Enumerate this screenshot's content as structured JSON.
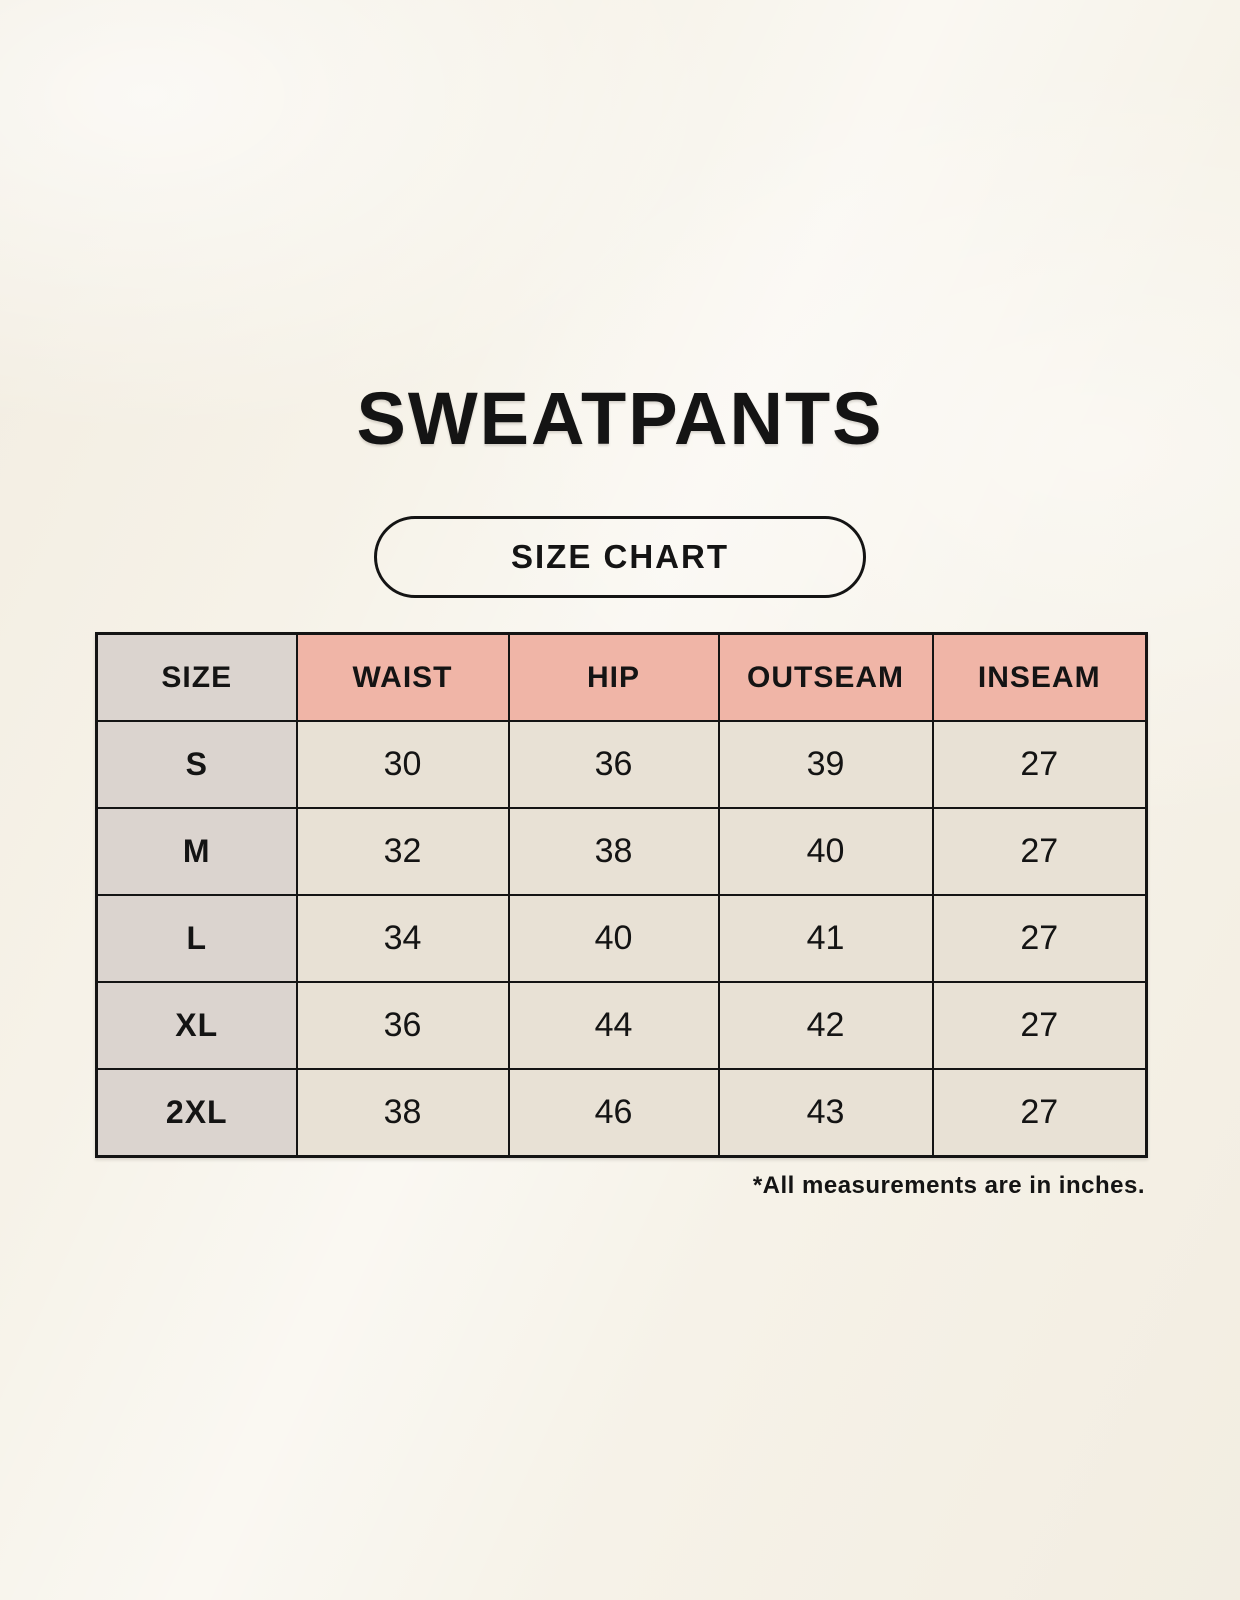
{
  "header": {
    "title": "SWEATPANTS",
    "badge_label": "SIZE CHART"
  },
  "chart_data": {
    "type": "table",
    "columns": [
      "SIZE",
      "WAIST",
      "HIP",
      "OUTSEAM",
      "INSEAM"
    ],
    "rows": [
      [
        "S",
        "30",
        "36",
        "39",
        "27"
      ],
      [
        "M",
        "32",
        "38",
        "40",
        "27"
      ],
      [
        "L",
        "34",
        "40",
        "41",
        "27"
      ],
      [
        "XL",
        "36",
        "44",
        "42",
        "27"
      ],
      [
        "2XL",
        "38",
        "46",
        "43",
        "27"
      ]
    ],
    "units": "inches"
  },
  "footer": {
    "note": "*All measurements are in inches."
  },
  "colors": {
    "background": "#f6f2e8",
    "header_accent": "#f0b5a7",
    "size_column": "#dbd4cf",
    "data_cell": "#e8e1d5",
    "border": "#141414",
    "text": "#141414"
  }
}
